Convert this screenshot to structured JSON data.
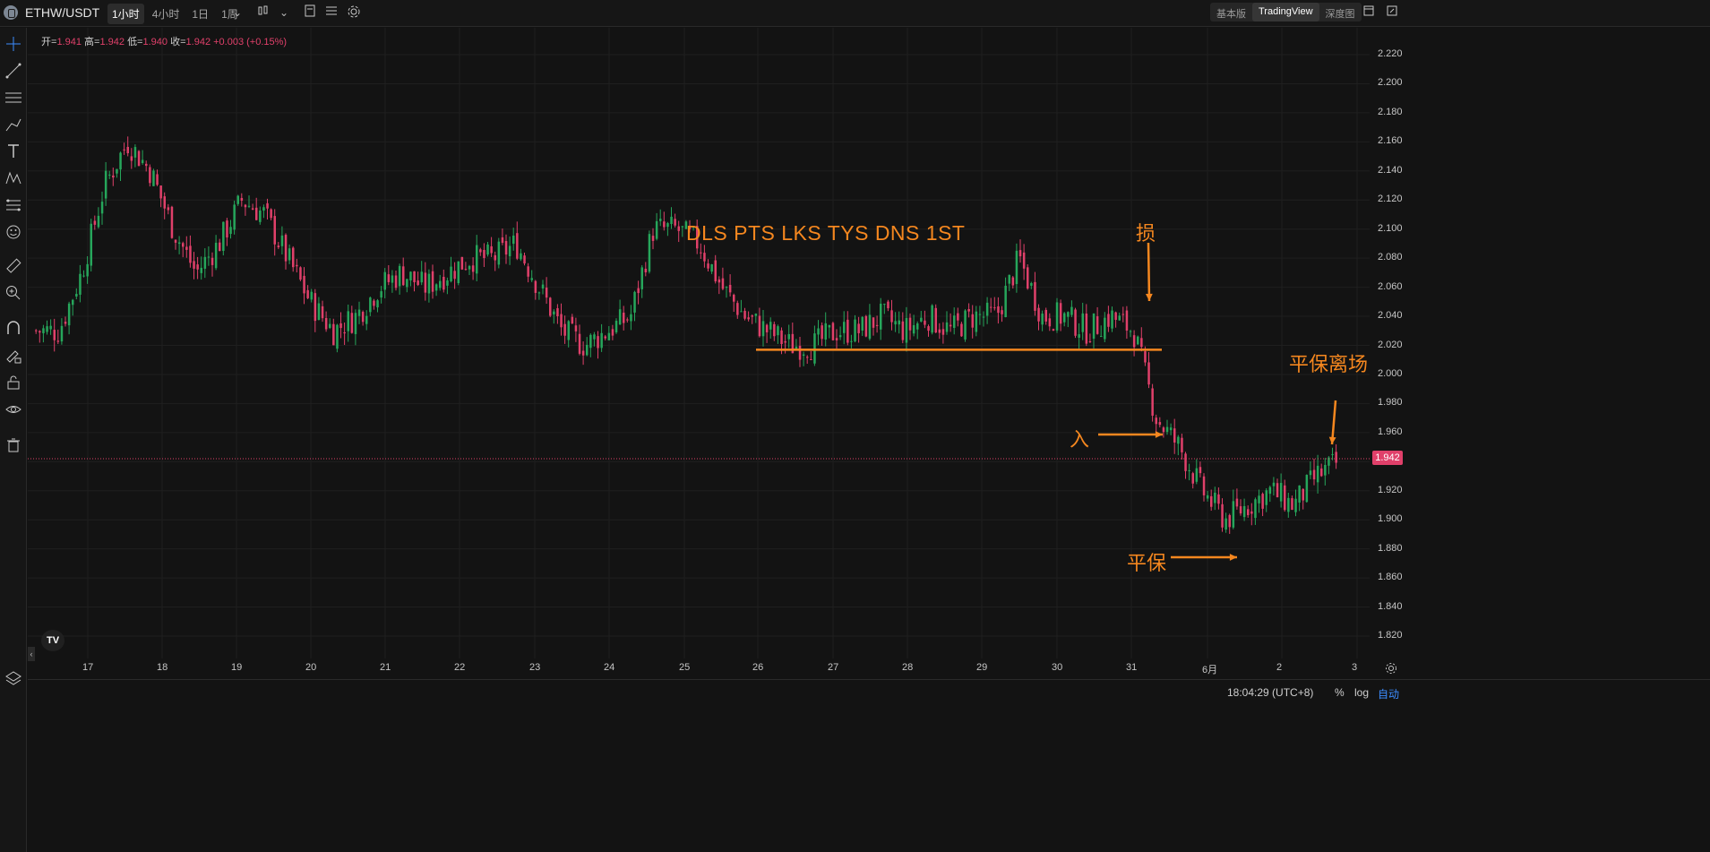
{
  "header": {
    "symbol": "ETHW/USDT",
    "intervals": [
      "1小时",
      "4小时",
      "1日",
      "1周"
    ],
    "active_interval": "1小时",
    "views": [
      "基本版",
      "TradingView",
      "深度图"
    ],
    "active_view": "TradingView"
  },
  "ohlc": {
    "open_label": "开=",
    "open": "1.941",
    "high_label": "高=",
    "high": "1.942",
    "low_label": "低=",
    "low": "1.940",
    "close_label": "收=",
    "close": "1.942",
    "change": "+0.003 (+0.15%)"
  },
  "price_axis": [
    "2.220",
    "2.200",
    "2.180",
    "2.160",
    "2.140",
    "2.120",
    "2.100",
    "2.080",
    "2.060",
    "2.040",
    "2.020",
    "2.000",
    "1.980",
    "1.960",
    "1.940",
    "1.920",
    "1.900",
    "1.880",
    "1.860",
    "1.840",
    "1.820"
  ],
  "time_axis": [
    "17",
    "18",
    "19",
    "20",
    "21",
    "22",
    "23",
    "24",
    "25",
    "26",
    "27",
    "28",
    "29",
    "30",
    "31",
    "6月",
    "2",
    "3"
  ],
  "last_price": "1.942",
  "annotations": {
    "headline": "DLS PTS LKS TYS DNS 1ST",
    "stop": "损",
    "entry": "入",
    "breakeven": "平保",
    "exit": "平保离场"
  },
  "footer": {
    "clock": "18:04:29 (UTC+8)",
    "percent": "%",
    "log": "log",
    "auto": "自动"
  },
  "logo_text": "TV",
  "colors": {
    "up": "#26a65b",
    "down": "#e0406a",
    "annotation": "#f5871f",
    "background": "#131313"
  },
  "chart_data": {
    "type": "candlestick",
    "series": [
      {
        "name": "ETHW/USDT",
        "values": [
          2.03,
          2.03,
          2.07,
          2.13,
          2.16,
          2.14,
          2.1,
          2.07,
          2.09,
          2.12,
          2.11,
          2.08,
          2.05,
          2.03,
          2.04,
          2.06,
          2.07,
          2.06,
          2.07,
          2.08,
          2.08,
          2.09,
          2.06,
          2.03,
          2.02,
          2.03,
          2.04,
          2.1,
          2.1,
          2.09,
          2.06,
          2.04,
          2.03,
          2.02,
          2.02,
          2.03,
          2.03,
          2.04,
          2.03,
          2.04,
          2.03,
          2.04,
          2.04,
          2.08,
          2.04,
          2.04,
          2.03,
          2.04,
          2.03,
          1.97,
          1.95,
          1.92,
          1.9,
          1.91,
          1.92,
          1.91,
          1.93,
          1.94
        ]
      }
    ],
    "ylim": [
      1.81,
      2.23
    ],
    "x_labels": [
      "17",
      "18",
      "19",
      "20",
      "21",
      "22",
      "23",
      "24",
      "25",
      "26",
      "27",
      "28",
      "29",
      "30",
      "31",
      "6月",
      "2",
      "3"
    ],
    "horizontal_lines": [
      {
        "y": 1.942,
        "style": "dotted"
      },
      {
        "y": 2.017,
        "from": "26",
        "to": "31"
      }
    ]
  }
}
